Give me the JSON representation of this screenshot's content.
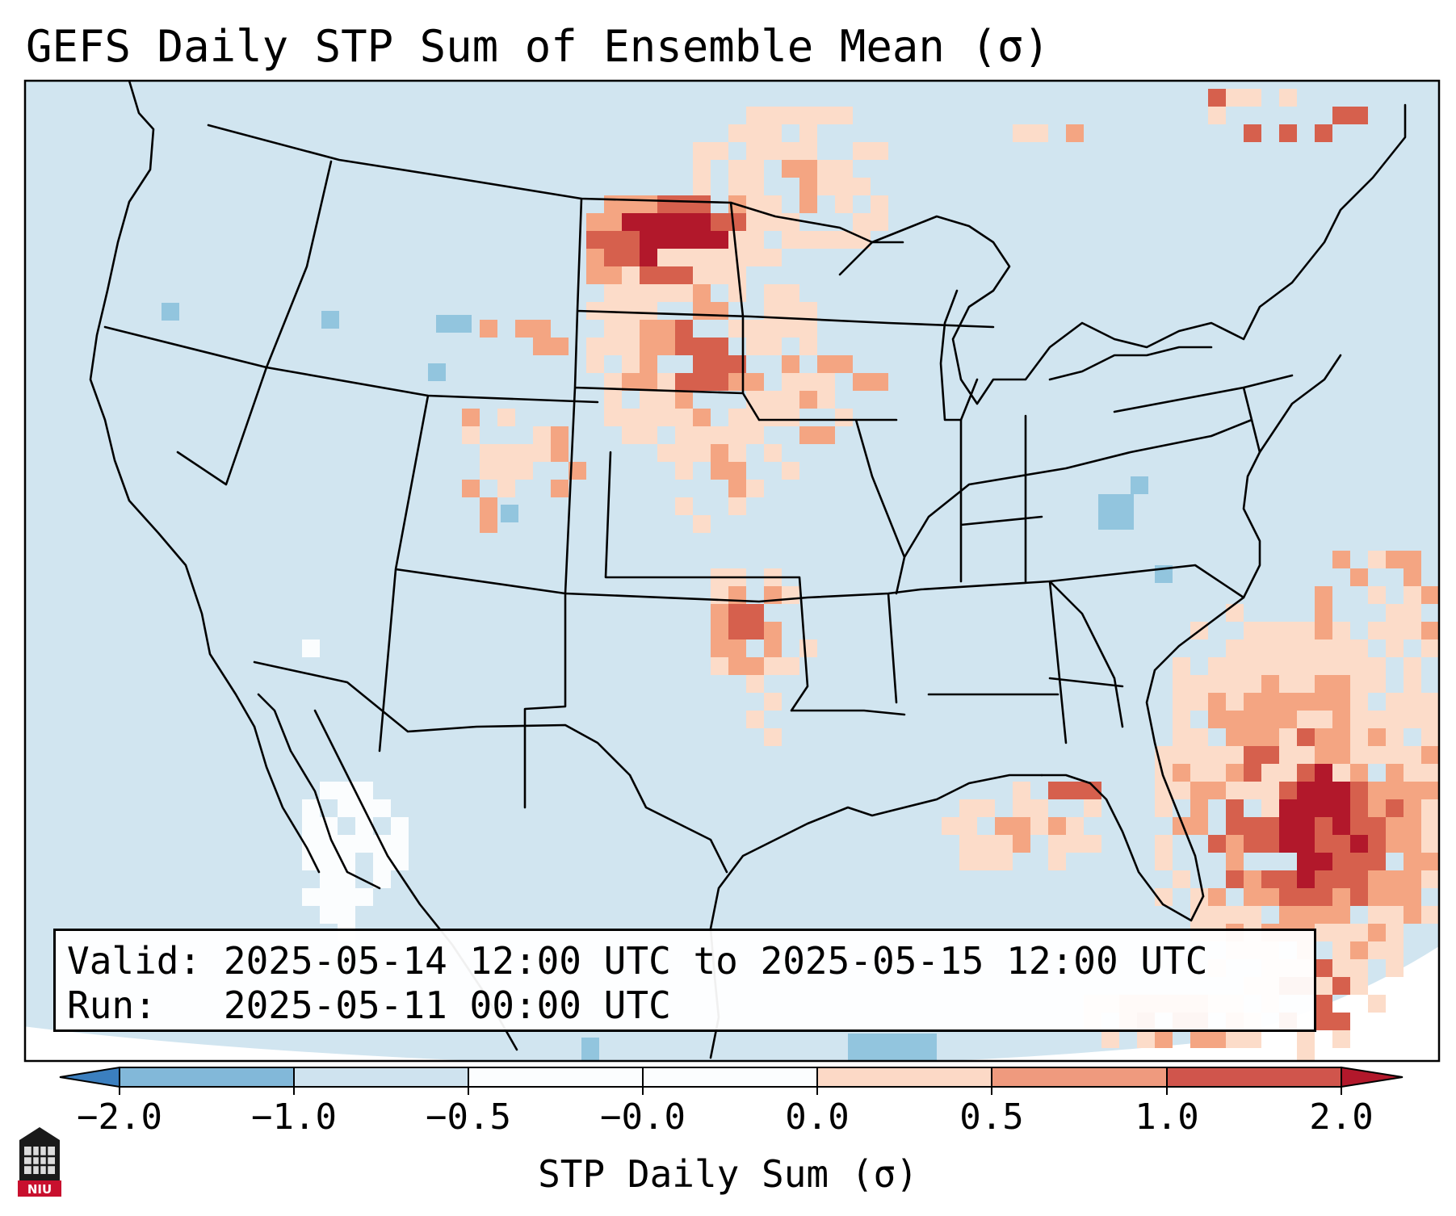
{
  "title": "GEFS Daily STP Sum of Ensemble Mean (σ)",
  "info": {
    "valid_label": "Valid:",
    "valid_value": "2025-05-14 12:00 UTC to 2025-05-15 12:00 UTC",
    "run_label": "Run:",
    "run_value": "2025-05-11 00:00 UTC"
  },
  "colorbar": {
    "label": "STP Daily Sum (σ)",
    "ticks": [
      "−2.0",
      "−1.0",
      "−0.5",
      "−0.0",
      "0.0",
      "0.5",
      "1.0",
      "2.0"
    ],
    "colors": [
      "#3b7fbf",
      "#82b8d9",
      "#cfe3ef",
      "#fbfdfe",
      "#fcd9c6",
      "#ef9a7e",
      "#d0554c",
      "#b2182b"
    ]
  },
  "map": {
    "background": "#d1e5f0",
    "outside": "#ffffff",
    "anomaly_levels": [
      "strong negative",
      "negative",
      "weak negative",
      "neutral",
      "weak positive",
      "positive",
      "strong positive"
    ],
    "features": [
      {
        "region": "North/South Dakota",
        "level": "strong positive"
      },
      {
        "region": "Nebraska/Kansas/Oklahoma corridor",
        "level": "positive"
      },
      {
        "region": "Florida and western Atlantic / Bahamas",
        "level": "strong positive"
      },
      {
        "region": "Gulf of Mexico near Louisiana",
        "level": "positive"
      },
      {
        "region": "Northwest Mexico",
        "level": "neutral"
      },
      {
        "region": "West Virginia",
        "level": "negative"
      }
    ]
  },
  "logo": {
    "text": "NIU"
  }
}
